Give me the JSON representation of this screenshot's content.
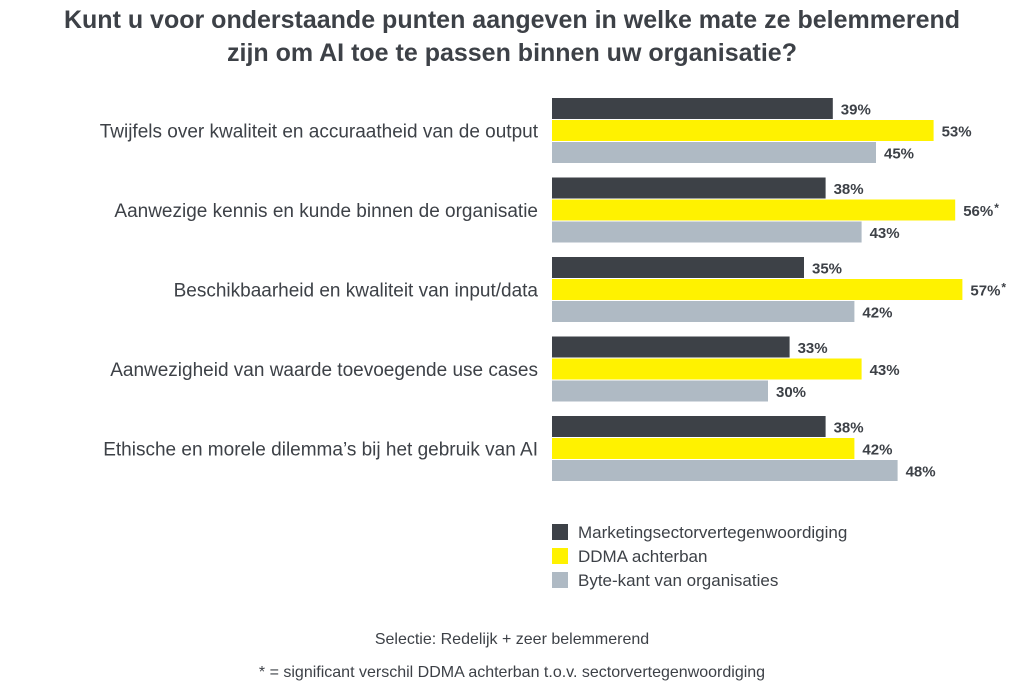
{
  "title_line1": "Kunt u voor onderstaande punten aangeven in welke mate ze belemmerend",
  "title_line2": "zijn om AI toe te passen binnen uw organisatie?",
  "colors": {
    "Marketingsectorvertegenwoordiging": "#3d4147",
    "DDMA achterban": "#fff200",
    "Byte-kant van organisaties": "#afbac4"
  },
  "chart_data": {
    "type": "bar",
    "orientation": "horizontal",
    "categories": [
      "Twijfels over kwaliteit en accuraatheid van de output",
      "Aanwezige kennis en kunde binnen de organisatie",
      "Beschikbaarheid en kwaliteit van input/data",
      "Aanwezigheid van waarde toevoegende use cases",
      "Ethische en morele dilemma’s bij het gebruik van AI"
    ],
    "series": [
      {
        "name": "Marketingsectorvertegenwoordiging",
        "values": [
          39,
          38,
          35,
          33,
          38
        ]
      },
      {
        "name": "DDMA achterban",
        "values": [
          53,
          56,
          57,
          43,
          42
        ],
        "significant": [
          false,
          true,
          true,
          false,
          false
        ]
      },
      {
        "name": "Byte-kant van organisaties",
        "values": [
          45,
          43,
          42,
          30,
          48
        ]
      }
    ],
    "value_suffix": "%",
    "significance_marker": "*",
    "xlim": [
      0,
      60
    ],
    "grid": false,
    "legend_position": "bottom-right"
  },
  "notes": {
    "selection": "Selectie: Redelijk + zeer belemmerend",
    "significance": "* = significant verschil DDMA achterban t.o.v. sectorvertegenwoordiging"
  }
}
